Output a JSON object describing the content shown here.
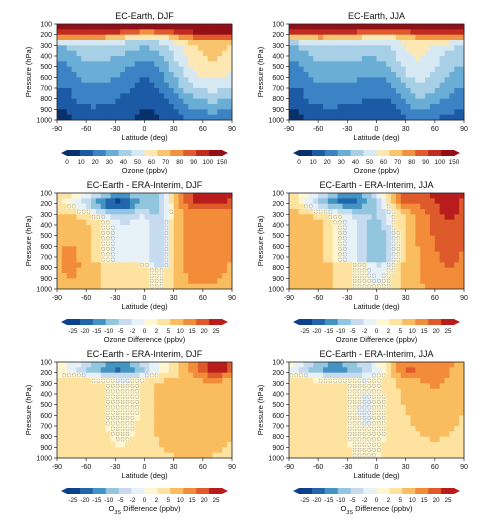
{
  "chart_data": [
    {
      "type": "heatmap",
      "title": "EC-Earth, DJF",
      "xlabel": "Latitude (deg)",
      "ylabel": "Pressure (hPa)",
      "x_ticks": [
        "-90",
        "-60",
        "-30",
        "0",
        "30",
        "60",
        "90"
      ],
      "y_ticks": [
        "100",
        "200",
        "300",
        "400",
        "500",
        "600",
        "700",
        "800",
        "900",
        "1000"
      ],
      "xlim": [
        -90,
        90
      ],
      "ylim": [
        1000,
        100
      ],
      "colorbar_label": "Ozone (ppbv)",
      "colorbar_ticks": [
        "0",
        "10",
        "20",
        "30",
        "40",
        "50",
        "60",
        "70",
        "80",
        "90",
        "100",
        "150"
      ],
      "colorscale": "sequential",
      "hatched_regions": false
    },
    {
      "type": "heatmap",
      "title": "EC-Earth, JJA",
      "xlabel": "Latitude (deg)",
      "ylabel": "Pressure (hPa)",
      "x_ticks": [
        "-90",
        "-60",
        "-30",
        "0",
        "30",
        "60",
        "90"
      ],
      "y_ticks": [
        "100",
        "200",
        "300",
        "400",
        "500",
        "600",
        "700",
        "800",
        "900",
        "1000"
      ],
      "xlim": [
        -90,
        90
      ],
      "ylim": [
        1000,
        100
      ],
      "colorbar_label": "Ozone (ppbv)",
      "colorbar_ticks": [
        "0",
        "10",
        "20",
        "30",
        "40",
        "50",
        "60",
        "70",
        "80",
        "90",
        "100",
        "150"
      ],
      "colorscale": "sequential",
      "hatched_regions": false
    },
    {
      "type": "heatmap",
      "title": "EC-Earth - ERA-Interim, DJF",
      "xlabel": "Latitude (deg)",
      "ylabel": "Pressure (hPa)",
      "x_ticks": [
        "-90",
        "-60",
        "-30",
        "0",
        "30",
        "60",
        "90"
      ],
      "y_ticks": [
        "100",
        "200",
        "300",
        "400",
        "500",
        "600",
        "700",
        "800",
        "900",
        "1000"
      ],
      "xlim": [
        -90,
        90
      ],
      "ylim": [
        1000,
        100
      ],
      "colorbar_label": "Ozone Difference (ppbv)",
      "colorbar_ticks": [
        "-25",
        "-20",
        "-15",
        "-10",
        "-5",
        "-2",
        "0",
        "2",
        "5",
        "10",
        "15",
        "20",
        "25"
      ],
      "colorscale": "diverging",
      "hatched_regions": true
    },
    {
      "type": "heatmap",
      "title": "EC-Earth - ERA-Interim, JJA",
      "xlabel": "Latitude (deg)",
      "ylabel": "Pressure (hPa)",
      "x_ticks": [
        "-90",
        "-60",
        "-30",
        "0",
        "30",
        "60",
        "90"
      ],
      "y_ticks": [
        "100",
        "200",
        "300",
        "400",
        "500",
        "600",
        "700",
        "800",
        "900",
        "1000"
      ],
      "xlim": [
        -90,
        90
      ],
      "ylim": [
        1000,
        100
      ],
      "colorbar_label": "Ozone Difference (ppbv)",
      "colorbar_ticks": [
        "-25",
        "-20",
        "-15",
        "-10",
        "-5",
        "-2",
        "0",
        "2",
        "5",
        "10",
        "15",
        "20",
        "25"
      ],
      "colorscale": "diverging",
      "hatched_regions": true
    },
    {
      "type": "heatmap",
      "title": "EC-Earth - ERA-Interim, DJF",
      "xlabel": "Latitude (deg)",
      "ylabel": "Pressure (hPa)",
      "x_ticks": [
        "-90",
        "-60",
        "-30",
        "0",
        "30",
        "60",
        "90"
      ],
      "y_ticks": [
        "100",
        "200",
        "300",
        "400",
        "500",
        "600",
        "700",
        "800",
        "900",
        "1000"
      ],
      "xlim": [
        -90,
        90
      ],
      "ylim": [
        1000,
        100
      ],
      "colorbar_label_main": "O",
      "colorbar_label_sub": "3S",
      "colorbar_label_rest": " Difference (ppbv)",
      "colorbar_ticks": [
        "-25",
        "-20",
        "-15",
        "-10",
        "-5",
        "-2",
        "0",
        "2",
        "5",
        "10",
        "15",
        "20",
        "25"
      ],
      "colorscale": "diverging",
      "hatched_regions": true
    },
    {
      "type": "heatmap",
      "title": "EC-Earth - ERA-Interim, JJA",
      "xlabel": "Latitude (deg)",
      "ylabel": "Pressure (hPa)",
      "x_ticks": [
        "-90",
        "-60",
        "-30",
        "0",
        "30",
        "60",
        "90"
      ],
      "y_ticks": [
        "100",
        "200",
        "300",
        "400",
        "500",
        "600",
        "700",
        "800",
        "900",
        "1000"
      ],
      "xlim": [
        -90,
        90
      ],
      "ylim": [
        1000,
        100
      ],
      "colorbar_label_main": "O",
      "colorbar_label_sub": "3S",
      "colorbar_label_rest": " Difference (ppbv)",
      "colorbar_ticks": [
        "-25",
        "-20",
        "-15",
        "-10",
        "-5",
        "-2",
        "0",
        "2",
        "5",
        "10",
        "15",
        "20",
        "25"
      ],
      "colorscale": "diverging",
      "hatched_regions": true
    }
  ],
  "colors": {
    "sequential": [
      "#08306b",
      "#1c5aa6",
      "#3b83c4",
      "#6aaed6",
      "#a7cfe6",
      "#d6e9f3",
      "#fde8b3",
      "#f8c46e",
      "#f2913f",
      "#e05a2d",
      "#c02b22",
      "#930f18"
    ],
    "diverging": [
      "#0c3f8c",
      "#2166ac",
      "#4393c3",
      "#92c5de",
      "#c6dbef",
      "#e7f1f8",
      "#fff7d1",
      "#fde2a0",
      "#f9bd5f",
      "#f28c38",
      "#de5a2b",
      "#b91c1c"
    ]
  }
}
